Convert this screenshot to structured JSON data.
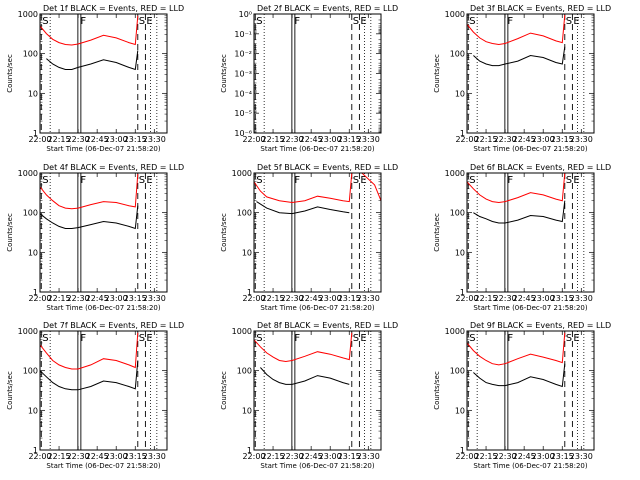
{
  "figure": {
    "title_template": "Det {det} BLACK = Events, RED = LLD",
    "xlabel": "Start Time (06-Dec-07 21:58:20)",
    "ylabel": "Counts/sec",
    "x_ticks": [
      "22:00",
      "22:15",
      "22:30",
      "22:45",
      "23:00",
      "23:15",
      "23:30"
    ],
    "colors": {
      "events": "#000000",
      "lld": "#ff0000"
    }
  },
  "chart_data": [
    {
      "type": "line",
      "detector": "1f",
      "title": "Det 1f BLACK = Events, RED = LLD",
      "xlabel": "Start Time (06-Dec-07 21:58:20)",
      "ylabel": "Counts/sec",
      "xlim": [
        "22:00",
        "23:40"
      ],
      "ylim": [
        1,
        1000
      ],
      "yscale": "log",
      "y_ticks": [
        "1",
        "10",
        "100",
        "1000"
      ],
      "markers": [
        {
          "label": "S",
          "time": "22:01"
        },
        {
          "label": "F",
          "time": "22:31"
        },
        {
          "label": "S",
          "time": "23:17"
        },
        {
          "label": "E",
          "time": "23:23"
        }
      ],
      "series": [
        {
          "name": "Events",
          "color": "#000000",
          "x": [
            "22:05",
            "22:10",
            "22:15",
            "22:20",
            "22:25",
            "22:30",
            "22:40",
            "22:50",
            "23:00",
            "23:10",
            "23:15",
            "23:17"
          ],
          "values": [
            75,
            55,
            45,
            40,
            40,
            45,
            55,
            70,
            60,
            45,
            40,
            120
          ]
        },
        {
          "name": "LLD",
          "color": "#ff0000",
          "x": [
            "22:00",
            "22:05",
            "22:10",
            "22:15",
            "22:20",
            "22:25",
            "22:30",
            "22:40",
            "22:50",
            "23:00",
            "23:10",
            "23:15",
            "23:17"
          ],
          "values": [
            500,
            320,
            230,
            190,
            170,
            165,
            175,
            220,
            290,
            250,
            190,
            170,
            900
          ]
        }
      ]
    },
    {
      "type": "line",
      "detector": "2f",
      "title": "Det 2f BLACK = Events, RED = LLD",
      "xlabel": "Start Time (06-Dec-07 21:58:20)",
      "ylabel": "Counts/sec",
      "xlim": [
        "22:00",
        "23:40"
      ],
      "ylim": [
        1e-06,
        1
      ],
      "yscale": "log",
      "y_ticks": [
        "10⁰",
        "10⁻¹",
        "10⁻²",
        "10⁻³",
        "10⁻⁴",
        "10⁻⁵",
        "10⁻⁶"
      ],
      "markers": [
        {
          "label": "S",
          "time": "22:01"
        },
        {
          "label": "F",
          "time": "22:31"
        },
        {
          "label": "S",
          "time": "23:17"
        },
        {
          "label": "E",
          "time": "23:23"
        }
      ],
      "series": []
    },
    {
      "type": "line",
      "detector": "3f",
      "title": "Det 3f BLACK = Events, RED = LLD",
      "xlabel": "Start Time (06-Dec-07 21:58:20)",
      "ylabel": "Counts/sec",
      "xlim": [
        "22:00",
        "23:40"
      ],
      "ylim": [
        1,
        1000
      ],
      "yscale": "log",
      "y_ticks": [
        "1",
        "10",
        "100",
        "1000"
      ],
      "markers": [
        {
          "label": "S",
          "time": "22:01"
        },
        {
          "label": "F",
          "time": "22:31"
        },
        {
          "label": "S",
          "time": "23:17"
        },
        {
          "label": "E",
          "time": "23:23"
        }
      ],
      "series": [
        {
          "name": "Events",
          "color": "#000000",
          "x": [
            "22:05",
            "22:10",
            "22:15",
            "22:20",
            "22:25",
            "22:30",
            "22:40",
            "22:50",
            "23:00",
            "23:10",
            "23:15",
            "23:17"
          ],
          "values": [
            90,
            65,
            55,
            50,
            50,
            55,
            65,
            90,
            80,
            60,
            55,
            150
          ]
        },
        {
          "name": "LLD",
          "color": "#ff0000",
          "x": [
            "22:00",
            "22:05",
            "22:10",
            "22:15",
            "22:20",
            "22:25",
            "22:30",
            "22:40",
            "22:50",
            "23:00",
            "23:10",
            "23:15",
            "23:17"
          ],
          "values": [
            550,
            350,
            250,
            200,
            180,
            170,
            180,
            240,
            330,
            280,
            210,
            190,
            950
          ]
        }
      ]
    },
    {
      "type": "line",
      "detector": "4f",
      "title": "Det 4f BLACK = Events, RED = LLD",
      "xlabel": "Start Time (06-Dec-07 21:58:20)",
      "ylabel": "Counts/sec",
      "xlim": [
        "22:00",
        "23:40"
      ],
      "ylim": [
        1,
        1000
      ],
      "yscale": "log",
      "y_ticks": [
        "1",
        "10",
        "100",
        "1000"
      ],
      "markers": [
        {
          "label": "S",
          "time": "22:01"
        },
        {
          "label": "F",
          "time": "22:31"
        },
        {
          "label": "S",
          "time": "23:17"
        },
        {
          "label": "E",
          "time": "23:23"
        }
      ],
      "series": [
        {
          "name": "Events",
          "color": "#000000",
          "x": [
            "22:00",
            "22:05",
            "22:10",
            "22:15",
            "22:20",
            "22:25",
            "22:30",
            "22:40",
            "22:50",
            "23:00",
            "23:10",
            "23:15",
            "23:17"
          ],
          "values": [
            95,
            70,
            55,
            45,
            40,
            40,
            42,
            50,
            60,
            55,
            45,
            40,
            150
          ]
        },
        {
          "name": "LLD",
          "color": "#ff0000",
          "x": [
            "22:00",
            "22:05",
            "22:10",
            "22:15",
            "22:20",
            "22:25",
            "22:30",
            "22:40",
            "22:50",
            "23:00",
            "23:10",
            "23:15",
            "23:17"
          ],
          "values": [
            450,
            280,
            200,
            150,
            130,
            125,
            130,
            160,
            190,
            180,
            150,
            140,
            950
          ]
        }
      ]
    },
    {
      "type": "line",
      "detector": "5f",
      "title": "Det 5f BLACK = Events, RED = LLD",
      "xlabel": "Start Time (06-Dec-07 21:58:20)",
      "ylabel": "Counts/sec",
      "xlim": [
        "22:00",
        "23:40"
      ],
      "ylim": [
        1,
        1000
      ],
      "yscale": "log",
      "y_ticks": [
        "1",
        "10",
        "100",
        "1000"
      ],
      "markers": [
        {
          "label": "S",
          "time": "22:01"
        },
        {
          "label": "F",
          "time": "22:31"
        },
        {
          "label": "S",
          "time": "23:17"
        },
        {
          "label": "E",
          "time": "23:23"
        }
      ],
      "series": [
        {
          "name": "Events",
          "color": "#000000",
          "x": [
            "22:02",
            "22:10",
            "22:20",
            "22:30",
            "22:40",
            "22:50",
            "23:00",
            "23:10",
            "23:15"
          ],
          "values": [
            190,
            130,
            100,
            95,
            110,
            140,
            120,
            105,
            100
          ]
        },
        {
          "name": "LLD",
          "color": "#ff0000",
          "x": [
            "22:00",
            "22:05",
            "22:10",
            "22:20",
            "22:30",
            "22:40",
            "22:50",
            "23:00",
            "23:10",
            "23:15",
            "23:17",
            "23:25",
            "23:35",
            "23:40"
          ],
          "values": [
            600,
            350,
            250,
            200,
            180,
            200,
            260,
            230,
            200,
            190,
            1000,
            1000,
            500,
            200
          ]
        }
      ]
    },
    {
      "type": "line",
      "detector": "6f",
      "title": "Det 6f BLACK = Events, RED = LLD",
      "xlabel": "Start Time (06-Dec-07 21:58:20)",
      "ylabel": "Counts/sec",
      "xlim": [
        "22:00",
        "23:40"
      ],
      "ylim": [
        1,
        1000
      ],
      "yscale": "log",
      "y_ticks": [
        "1",
        "10",
        "100",
        "1000"
      ],
      "markers": [
        {
          "label": "S",
          "time": "22:01"
        },
        {
          "label": "F",
          "time": "22:31"
        },
        {
          "label": "S",
          "time": "23:17"
        },
        {
          "label": "E",
          "time": "23:23"
        }
      ],
      "series": [
        {
          "name": "Events",
          "color": "#000000",
          "x": [
            "22:05",
            "22:10",
            "22:15",
            "22:20",
            "22:25",
            "22:30",
            "22:40",
            "22:50",
            "23:00",
            "23:10",
            "23:15",
            "23:17"
          ],
          "values": [
            100,
            80,
            70,
            60,
            55,
            55,
            65,
            85,
            80,
            65,
            60,
            200
          ]
        },
        {
          "name": "LLD",
          "color": "#ff0000",
          "x": [
            "22:00",
            "22:05",
            "22:10",
            "22:15",
            "22:20",
            "22:25",
            "22:30",
            "22:40",
            "22:50",
            "23:00",
            "23:10",
            "23:15",
            "23:17"
          ],
          "values": [
            600,
            400,
            280,
            220,
            190,
            180,
            190,
            240,
            320,
            280,
            220,
            200,
            1000
          ]
        }
      ]
    },
    {
      "type": "line",
      "detector": "7f",
      "title": "Det 7f BLACK = Events, RED = LLD",
      "xlabel": "Start Time (06-Dec-07 21:58:20)",
      "ylabel": "Counts/sec",
      "xlim": [
        "22:00",
        "23:40"
      ],
      "ylim": [
        1,
        1000
      ],
      "yscale": "log",
      "y_ticks": [
        "1",
        "10",
        "100",
        "1000"
      ],
      "markers": [
        {
          "label": "S",
          "time": "22:01"
        },
        {
          "label": "F",
          "time": "22:31"
        },
        {
          "label": "S",
          "time": "23:17"
        },
        {
          "label": "E",
          "time": "23:23"
        }
      ],
      "series": [
        {
          "name": "Events",
          "color": "#000000",
          "x": [
            "22:00",
            "22:05",
            "22:10",
            "22:15",
            "22:20",
            "22:25",
            "22:30",
            "22:40",
            "22:50",
            "23:00",
            "23:10",
            "23:15",
            "23:17"
          ],
          "values": [
            100,
            70,
            50,
            40,
            35,
            33,
            33,
            40,
            55,
            50,
            40,
            35,
            180
          ]
        },
        {
          "name": "LLD",
          "color": "#ff0000",
          "x": [
            "22:00",
            "22:05",
            "22:10",
            "22:15",
            "22:20",
            "22:25",
            "22:30",
            "22:40",
            "22:50",
            "23:00",
            "23:10",
            "23:15",
            "23:17"
          ],
          "values": [
            450,
            280,
            180,
            140,
            120,
            110,
            110,
            140,
            200,
            180,
            140,
            120,
            900
          ]
        }
      ]
    },
    {
      "type": "line",
      "detector": "8f",
      "title": "Det 8f BLACK = Events, RED = LLD",
      "xlabel": "Start Time (06-Dec-07 21:58:20)",
      "ylabel": "Counts/sec",
      "xlim": [
        "22:00",
        "23:40"
      ],
      "ylim": [
        1,
        1000
      ],
      "yscale": "log",
      "y_ticks": [
        "1",
        "10",
        "100",
        "1000"
      ],
      "markers": [
        {
          "label": "S",
          "time": "22:01"
        },
        {
          "label": "F",
          "time": "22:31"
        },
        {
          "label": "S",
          "time": "23:17"
        },
        {
          "label": "E",
          "time": "23:23"
        }
      ],
      "series": [
        {
          "name": "Events",
          "color": "#000000",
          "x": [
            "22:05",
            "22:10",
            "22:15",
            "22:20",
            "22:25",
            "22:30",
            "22:40",
            "22:50",
            "23:00",
            "23:10",
            "23:15"
          ],
          "values": [
            120,
            80,
            60,
            50,
            45,
            45,
            55,
            75,
            65,
            50,
            45
          ]
        },
        {
          "name": "LLD",
          "color": "#ff0000",
          "x": [
            "22:00",
            "22:05",
            "22:10",
            "22:15",
            "22:20",
            "22:25",
            "22:30",
            "22:40",
            "22:50",
            "23:00",
            "23:10",
            "23:15",
            "23:17"
          ],
          "values": [
            600,
            400,
            280,
            220,
            180,
            170,
            180,
            230,
            300,
            260,
            210,
            190,
            900
          ]
        }
      ]
    },
    {
      "type": "line",
      "detector": "9f",
      "title": "Det 9f BLACK = Events, RED = LLD",
      "xlabel": "Start Time (06-Dec-07 21:58:20)",
      "ylabel": "Counts/sec",
      "xlim": [
        "22:00",
        "23:40"
      ],
      "ylim": [
        1,
        1000
      ],
      "yscale": "log",
      "y_ticks": [
        "1",
        "10",
        "100",
        "1000"
      ],
      "markers": [
        {
          "label": "S",
          "time": "22:01"
        },
        {
          "label": "F",
          "time": "22:31"
        },
        {
          "label": "S",
          "time": "23:17"
        },
        {
          "label": "E",
          "time": "23:23"
        }
      ],
      "series": [
        {
          "name": "Events",
          "color": "#000000",
          "x": [
            "22:05",
            "22:10",
            "22:15",
            "22:20",
            "22:25",
            "22:30",
            "22:40",
            "22:50",
            "23:00",
            "23:10",
            "23:15",
            "23:17"
          ],
          "values": [
            90,
            65,
            50,
            45,
            42,
            42,
            50,
            70,
            60,
            45,
            40,
            150
          ]
        },
        {
          "name": "LLD",
          "color": "#ff0000",
          "x": [
            "22:00",
            "22:05",
            "22:10",
            "22:15",
            "22:20",
            "22:25",
            "22:30",
            "22:40",
            "22:50",
            "23:00",
            "23:10",
            "23:15",
            "23:17"
          ],
          "values": [
            500,
            320,
            230,
            180,
            150,
            140,
            150,
            200,
            260,
            220,
            180,
            160,
            900
          ]
        }
      ]
    }
  ]
}
